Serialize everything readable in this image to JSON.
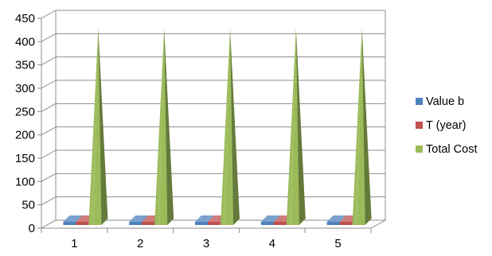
{
  "chart_data": {
    "type": "bar",
    "style": "3d-pyramid",
    "categories": [
      "1",
      "2",
      "3",
      "4",
      "5"
    ],
    "series": [
      {
        "name": "Value b",
        "values": [
          0.5,
          0.5,
          0.5,
          0.5,
          0.5
        ],
        "color": "#4f81bd"
      },
      {
        "name": "T (year)",
        "values": [
          0.5,
          0.5,
          0.5,
          0.5,
          0.5
        ],
        "color": "#c0504d"
      },
      {
        "name": "Total Cost",
        "values": [
          415,
          415,
          415,
          415,
          415
        ],
        "color": "#9bbb59"
      }
    ],
    "yticks": [
      "0",
      "50",
      "100",
      "150",
      "200",
      "250",
      "300",
      "350",
      "400",
      "450"
    ],
    "ylim": [
      0,
      450
    ],
    "grid": true,
    "legend_position": "right"
  }
}
